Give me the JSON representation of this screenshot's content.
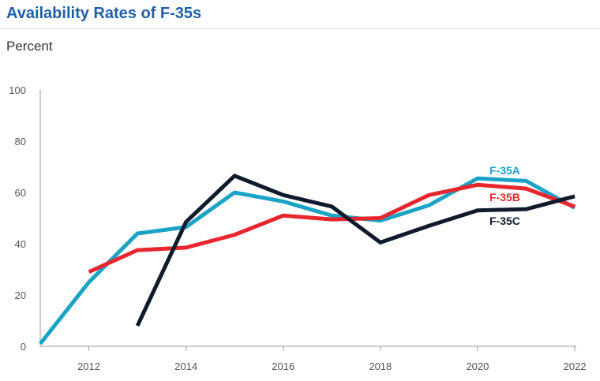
{
  "chart_data": {
    "type": "line",
    "title": "Availability Rates of F-35s",
    "ylabel": "Percent",
    "xlabel": "",
    "ylim": [
      0,
      100
    ],
    "xlim": [
      2011,
      2022
    ],
    "yticks": [
      0,
      20,
      40,
      60,
      80,
      100
    ],
    "xticks": [
      2012,
      2014,
      2016,
      2018,
      2020,
      2022
    ],
    "grid": false,
    "legend": "inline labels near right end",
    "series": [
      {
        "name": "F-35A",
        "color": "#1ba3c6",
        "x": [
          2011,
          2012,
          2013,
          2014,
          2015,
          2016,
          2017,
          2018,
          2019,
          2020,
          2021,
          2022
        ],
        "values": [
          1,
          25,
          44,
          46.5,
          60,
          56.5,
          51,
          49,
          55,
          65.5,
          64.5,
          54
        ]
      },
      {
        "name": "F-35B",
        "color": "#e8262e",
        "x": [
          2012,
          2013,
          2014,
          2015,
          2016,
          2017,
          2018,
          2019,
          2020,
          2021,
          2022
        ],
        "values": [
          29,
          37.5,
          38.5,
          43.5,
          51,
          49.5,
          50,
          59,
          63,
          61.5,
          54.5
        ]
      },
      {
        "name": "F-35C",
        "color": "#0f1b2d",
        "x": [
          2013,
          2014,
          2015,
          2016,
          2017,
          2018,
          2019,
          2020,
          2021,
          2022
        ],
        "values": [
          8,
          48.5,
          66.5,
          59,
          54.5,
          40.5,
          47,
          53,
          53.5,
          58.5
        ]
      }
    ]
  }
}
